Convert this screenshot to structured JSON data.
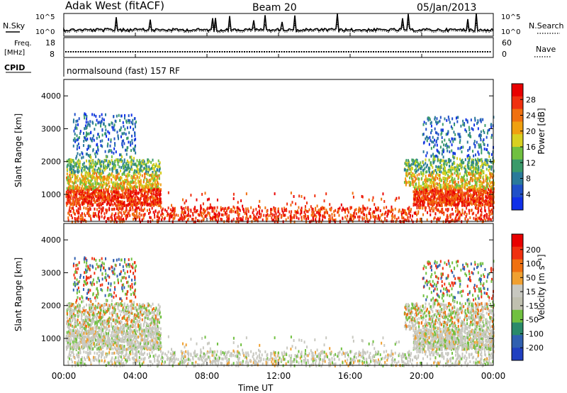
{
  "header": {
    "station": "Adak West (fitACF)",
    "beam": "Beam 20",
    "date": "05/Jan/2013"
  },
  "panels": {
    "nsky_label": "N.Sky",
    "nsearch_label": "N.Search",
    "freq_label_line1": "Freq.",
    "freq_label_line2": "[MHz]",
    "nave_label": "Nave",
    "cpid_label": "CPID",
    "cpid_text": "normalsound (fast) 157 RF",
    "noise_ticks": [
      "10^5",
      "10^0"
    ],
    "freq_ticks": [
      "18",
      "8"
    ],
    "nave_ticks": [
      "60",
      "0"
    ]
  },
  "colors": {
    "power_scale": [
      "#1030e8",
      "#2050c8",
      "#2a7a9a",
      "#3a9a6a",
      "#70c040",
      "#d8d020",
      "#f0a010",
      "#f07010",
      "#f03010",
      "#e80000"
    ],
    "velocity_scale": [
      "#2040c0",
      "#3060b0",
      "#2a8a6a",
      "#70c040",
      "#c0c0b0",
      "#c8c8c0",
      "#f0a030",
      "#f07010",
      "#f03010",
      "#e80000"
    ]
  },
  "chart_data": [
    {
      "type": "heatmap",
      "title": "Power",
      "xlabel": "Time UT",
      "ylabel": "Slant Range [km]",
      "x_ticks": [
        "00:00",
        "04:00",
        "08:00",
        "12:00",
        "16:00",
        "20:00",
        "00:00"
      ],
      "y_ticks": [
        "1000",
        "2000",
        "3000",
        "4000"
      ],
      "ylim": [
        180,
        4500
      ],
      "colorbar": {
        "label": "Power [dB]",
        "ticks": [
          "4",
          "8",
          "12",
          "16",
          "20",
          "24",
          "28"
        ],
        "range": [
          0,
          32
        ]
      }
    },
    {
      "type": "heatmap",
      "title": "Velocity",
      "xlabel": "Time UT",
      "ylabel": "Slant Range [km]",
      "x_ticks": [
        "00:00",
        "04:00",
        "08:00",
        "12:00",
        "16:00",
        "20:00",
        "00:00"
      ],
      "y_ticks": [
        "1000",
        "2000",
        "3000",
        "4000"
      ],
      "ylim": [
        180,
        4500
      ],
      "colorbar": {
        "label": "Velocity [m s⁻¹]",
        "ticks": [
          "200",
          "100",
          "50",
          "15",
          "-15",
          "-50",
          "-100",
          "-200"
        ]
      }
    }
  ]
}
